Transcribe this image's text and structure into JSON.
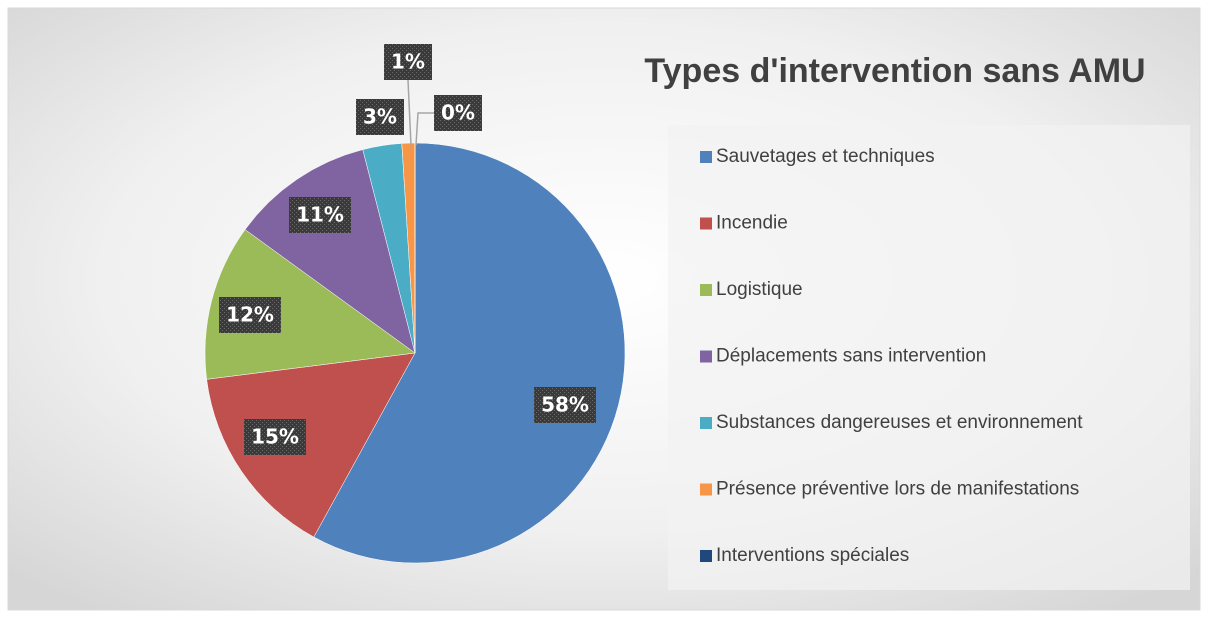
{
  "chart_data": {
    "type": "pie",
    "title": "Types d'intervention sans AMU",
    "categories": [
      "Sauvetages et techniques",
      "Incendie",
      "Logistique",
      "Déplacements sans intervention",
      "Substances dangereuses et environnement",
      "Présence préventive lors de manifestations",
      "Interventions spéciales"
    ],
    "values": [
      58,
      15,
      12,
      11,
      3,
      1,
      0
    ],
    "value_labels": [
      "58%",
      "15%",
      "12%",
      "11%",
      "3%",
      "1%",
      "0%"
    ],
    "colors": [
      "#4f81bd",
      "#c0504d",
      "#9bbb59",
      "#8064a2",
      "#4bacc6",
      "#f79646",
      "#1f497d"
    ],
    "legend": "right"
  }
}
